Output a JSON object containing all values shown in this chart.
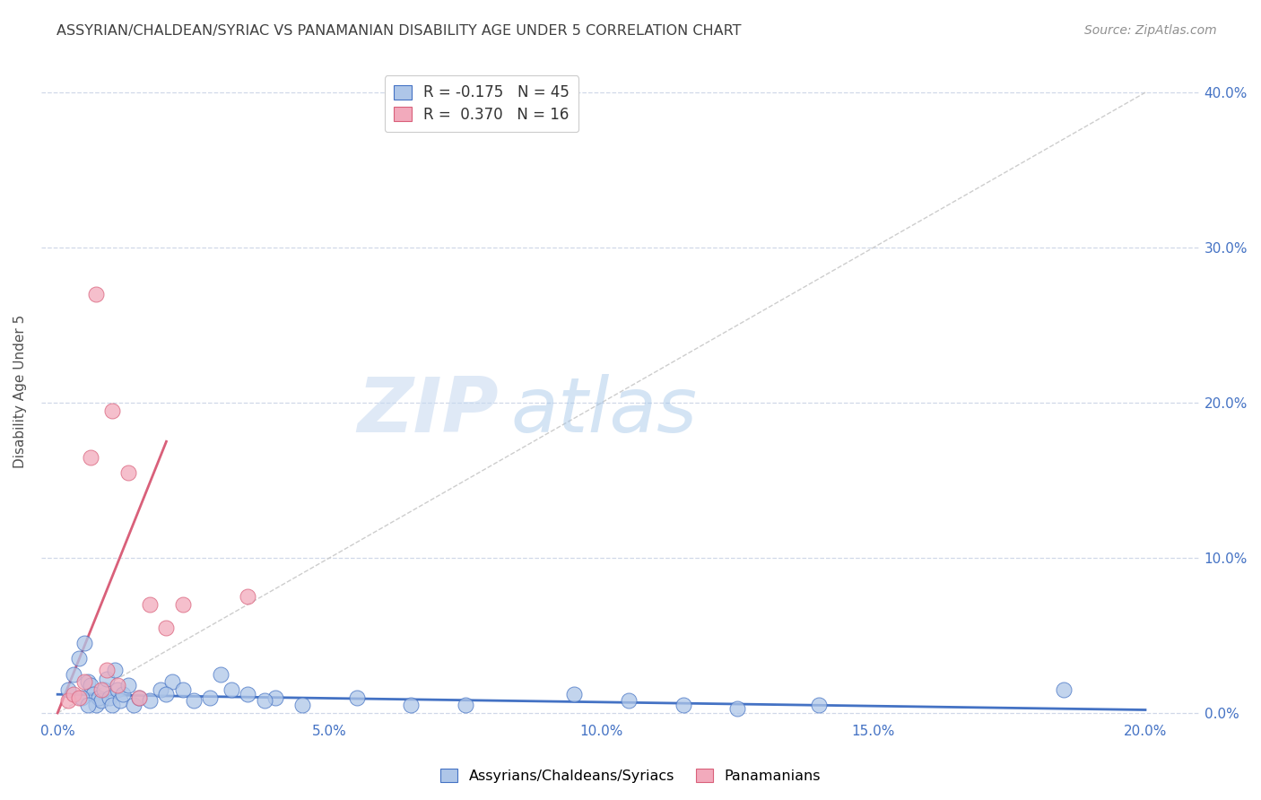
{
  "title": "ASSYRIAN/CHALDEAN/SYRIAC VS PANAMANIAN DISABILITY AGE UNDER 5 CORRELATION CHART",
  "source": "Source: ZipAtlas.com",
  "xlabel_vals": [
    0.0,
    5.0,
    10.0,
    15.0,
    20.0
  ],
  "ylabel_vals": [
    0.0,
    10.0,
    20.0,
    30.0,
    40.0
  ],
  "xmin": -0.3,
  "xmax": 21.0,
  "ymin": -0.5,
  "ymax": 42.0,
  "ylabel": "Disability Age Under 5",
  "blue_scatter_x": [
    0.2,
    0.3,
    0.4,
    0.5,
    0.55,
    0.6,
    0.65,
    0.7,
    0.75,
    0.8,
    0.85,
    0.9,
    0.95,
    1.0,
    1.05,
    1.1,
    1.15,
    1.2,
    1.3,
    1.4,
    1.5,
    1.7,
    1.9,
    2.1,
    2.3,
    2.5,
    2.8,
    3.0,
    3.2,
    3.5,
    4.0,
    4.5,
    5.5,
    6.5,
    7.5,
    9.5,
    10.5,
    11.5,
    12.5,
    14.0,
    18.5,
    0.45,
    0.55,
    2.0,
    3.8
  ],
  "blue_scatter_y": [
    1.5,
    2.5,
    3.5,
    4.5,
    2.0,
    1.8,
    1.2,
    0.5,
    1.0,
    0.8,
    1.5,
    2.2,
    1.0,
    0.5,
    2.8,
    1.5,
    0.8,
    1.2,
    1.8,
    0.5,
    1.0,
    0.8,
    1.5,
    2.0,
    1.5,
    0.8,
    1.0,
    2.5,
    1.5,
    1.2,
    1.0,
    0.5,
    1.0,
    0.5,
    0.5,
    1.2,
    0.8,
    0.5,
    0.3,
    0.5,
    1.5,
    1.0,
    0.5,
    1.2,
    0.8
  ],
  "pink_scatter_x": [
    0.2,
    0.3,
    0.4,
    0.5,
    0.6,
    0.7,
    0.8,
    0.9,
    1.0,
    1.1,
    1.3,
    1.5,
    1.7,
    2.0,
    2.3,
    3.5
  ],
  "pink_scatter_y": [
    0.8,
    1.2,
    1.0,
    2.0,
    16.5,
    27.0,
    1.5,
    2.8,
    19.5,
    1.8,
    15.5,
    1.0,
    7.0,
    5.5,
    7.0,
    7.5
  ],
  "blue_line_x": [
    0.0,
    20.0
  ],
  "blue_line_y": [
    1.2,
    0.2
  ],
  "pink_line_x": [
    0.0,
    2.0
  ],
  "pink_line_y": [
    0.0,
    17.5
  ],
  "diag_line_x": [
    0.0,
    20.0
  ],
  "diag_line_y": [
    0.0,
    40.0
  ],
  "watermark_zip": "ZIP",
  "watermark_atlas": "atlas",
  "legend_label_blue": "Assyrians/Chaldeans/Syriacs",
  "legend_label_pink": "Panamanians",
  "legend_r1": "R = -0.175",
  "legend_n1": "N = 45",
  "legend_r2": "R =  0.370",
  "legend_n2": "N = 16",
  "blue_dot_color": "#aec6e8",
  "pink_dot_color": "#f2aabc",
  "blue_line_color": "#4472c4",
  "pink_line_color": "#d9607a",
  "diag_color": "#c8c8c8",
  "grid_color": "#d0d8e8",
  "title_color": "#404040",
  "source_color": "#909090",
  "axis_label_color": "#505050",
  "tick_color_x": "#4472c4",
  "tick_color_y": "#4472c4",
  "background_color": "#ffffff",
  "legend_box_color": "#ffffff",
  "legend_edge_color": "#cccccc"
}
